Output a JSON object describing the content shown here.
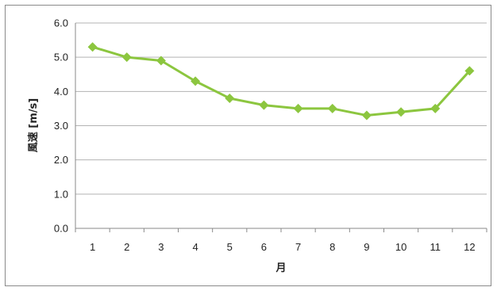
{
  "chart_data": {
    "type": "line",
    "title": "",
    "xlabel": "月",
    "ylabel": "風速 [m/s]",
    "categories": [
      "1",
      "2",
      "3",
      "4",
      "5",
      "6",
      "7",
      "8",
      "9",
      "10",
      "11",
      "12"
    ],
    "series": [
      {
        "values": [
          5.3,
          5.0,
          4.9,
          4.3,
          3.8,
          3.6,
          3.5,
          3.5,
          3.3,
          3.4,
          3.5,
          4.6
        ]
      }
    ],
    "ylim": [
      0,
      6
    ],
    "yticks": [
      "0.0",
      "1.0",
      "2.0",
      "3.0",
      "4.0",
      "5.0",
      "6.0"
    ],
    "grid": true,
    "legend": "none",
    "colors": {
      "series": "#8cc63f",
      "grid": "#b3b3b3",
      "axis": "#8a8a8a"
    }
  }
}
